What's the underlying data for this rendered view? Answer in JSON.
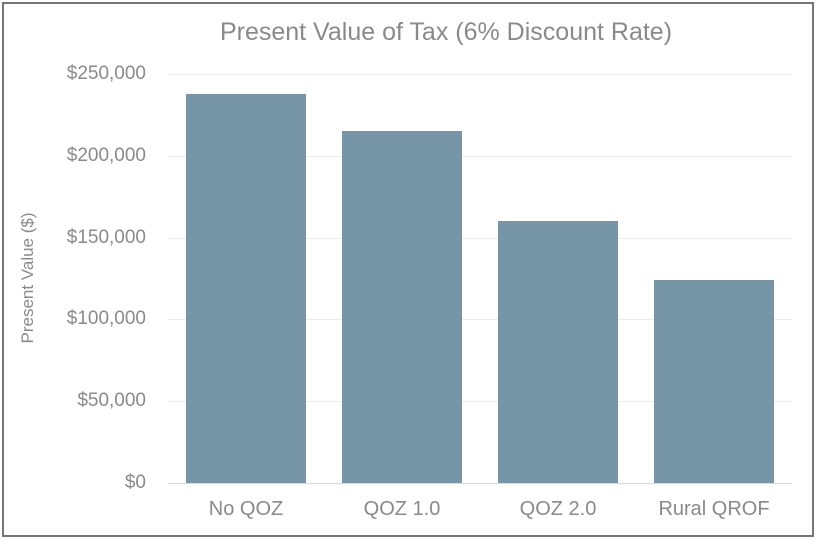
{
  "window": {
    "border_color": "#767676",
    "background": "#ffffff"
  },
  "colors": {
    "bar": "#7695A7",
    "gridline": "#ececec",
    "axis_line": "#d9d9d9",
    "text": "#8a8a8a"
  },
  "chart_data": {
    "type": "bar",
    "title": "Present Value of Tax (6% Discount Rate)",
    "xlabel": "",
    "ylabel": "Present Value ($)",
    "categories": [
      "No QOZ",
      "QOZ 1.0",
      "QOZ 2.0",
      "Rural QROF"
    ],
    "values": [
      238000,
      215000,
      160000,
      124000
    ],
    "ylim": [
      0,
      250000
    ],
    "yticks": [
      0,
      50000,
      100000,
      150000,
      200000,
      250000
    ],
    "ytick_labels": [
      "$0",
      "$50,000",
      "$100,000",
      "$150,000",
      "$200,000",
      "$250,000"
    ],
    "grid": true,
    "legend": false,
    "bar_color": "#7695A7"
  }
}
